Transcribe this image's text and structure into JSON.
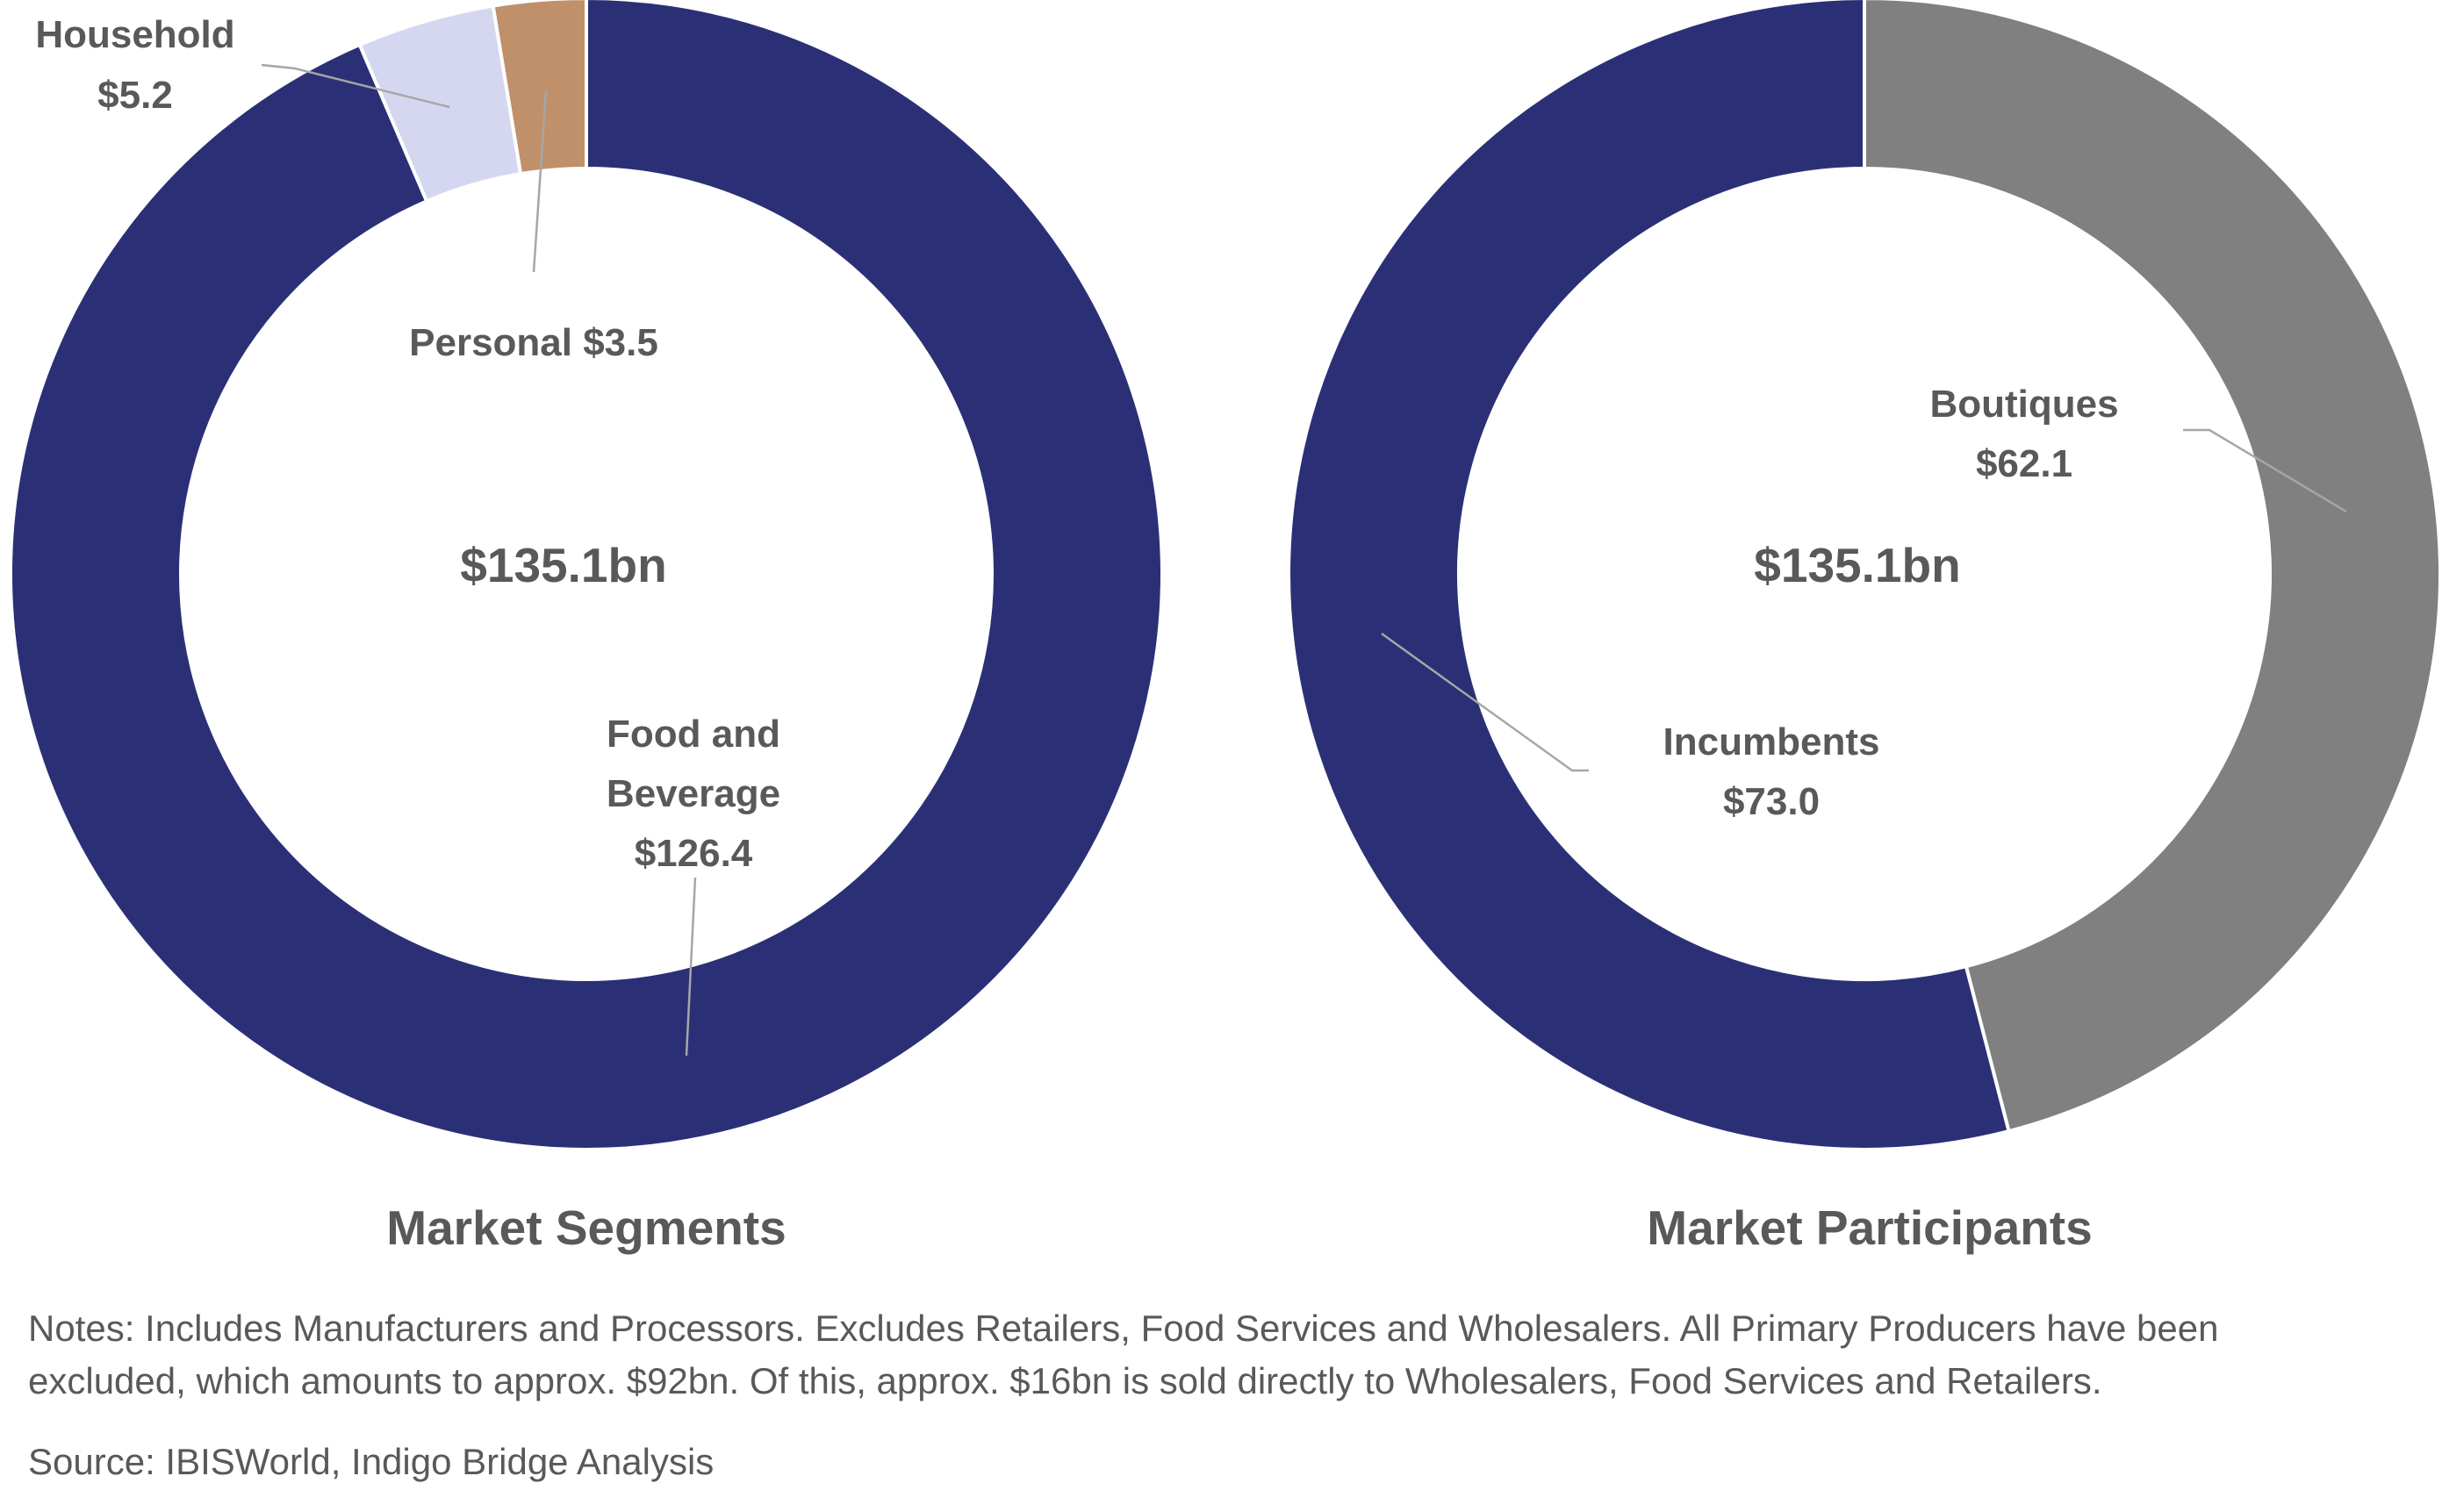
{
  "chart_data": [
    {
      "type": "pie",
      "title": "Market Segments",
      "center_label": "$135.1bn",
      "start_direction": "clockwise-from-top",
      "slices": [
        {
          "name": "Food and Beverage",
          "value": 126.4,
          "label_lines": [
            "Food and",
            "Beverage",
            "$126.4"
          ],
          "color": "#2B3076"
        },
        {
          "name": "Household",
          "value": 5.2,
          "label_lines": [
            "Household",
            "$5.2"
          ],
          "color": "#D5D7F1"
        },
        {
          "name": "Personal",
          "value": 3.5,
          "label_lines": [
            "Personal $3.5"
          ],
          "color": "#C0906A"
        }
      ]
    },
    {
      "type": "pie",
      "title": "Market Participants",
      "center_label": "$135.1bn",
      "start_direction": "clockwise-from-top",
      "slices": [
        {
          "name": "Boutiques",
          "value": 62.1,
          "label_lines": [
            "Boutiques",
            "$62.1"
          ],
          "color": "#808080"
        },
        {
          "name": "Incumbents",
          "value": 73.0,
          "label_lines": [
            "Incumbents",
            "$73.0"
          ],
          "color": "#2B3076"
        }
      ]
    }
  ],
  "notes": {
    "line1": "Notes: Includes Manufacturers and Processors. Excludes Retailers, Food Services and Wholesalers. All Primary Producers have been",
    "line2": "excluded, which amounts to approx. $92bn. Of this, approx. $16bn is sold directly to Wholesalers, Food Services and Retailers.",
    "source": "Source: IBISWorld, Indigo Bridge Analysis"
  }
}
